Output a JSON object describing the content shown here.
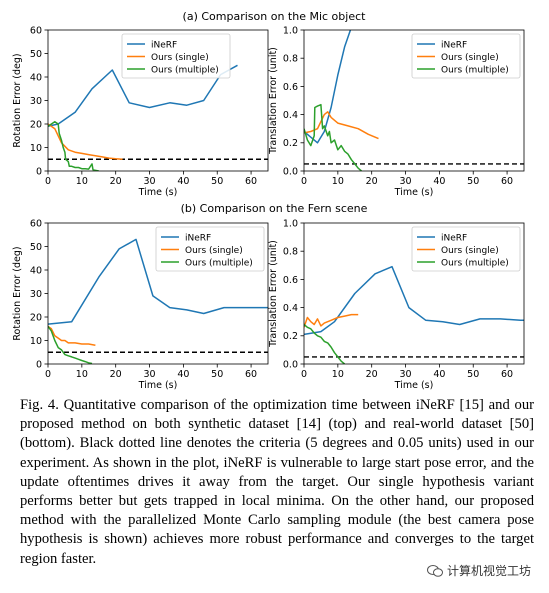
{
  "sections": [
    {
      "title": "(a) Comparison on the Mic object"
    },
    {
      "title": "(b) Comparison on the Fern scene"
    }
  ],
  "colors": {
    "inerf": "#1f77b4",
    "single": "#ff7f0e",
    "multiple": "#2ca02c",
    "criteria": "#000000"
  },
  "chart_data": [
    {
      "id": "mic-rotation",
      "type": "line",
      "xlabel": "Time (s)",
      "ylabel": "Rotation Error (deg)",
      "xlim": [
        0,
        65
      ],
      "ylim": [
        0,
        60
      ],
      "xticks": [
        0,
        10,
        20,
        30,
        40,
        50,
        60
      ],
      "yticks": [
        0,
        10,
        20,
        30,
        40,
        50,
        60
      ],
      "criteria": 5,
      "legend": [
        "iNeRF",
        "Ours (single)",
        "Ours (multiple)"
      ],
      "legend_position": "top-center",
      "series": [
        {
          "name": "iNeRF",
          "color": "#1f77b4",
          "x": [
            0,
            3,
            8,
            13,
            19,
            24,
            30,
            36,
            41,
            46,
            51,
            56
          ],
          "y": [
            19,
            20,
            25,
            35,
            43,
            29,
            27,
            29,
            28,
            30,
            41,
            45
          ]
        },
        {
          "name": "Ours (single)",
          "color": "#ff7f0e",
          "x": [
            0,
            2,
            4,
            6,
            8,
            10,
            12,
            14,
            16,
            18,
            20,
            22
          ],
          "y": [
            20,
            18,
            12,
            9,
            8,
            7.5,
            7,
            6.5,
            6,
            5.5,
            5.2,
            5
          ]
        },
        {
          "name": "Ours (multiple)",
          "color": "#2ca02c",
          "x": [
            0,
            1,
            2,
            3,
            3.3,
            4,
            4.5,
            5,
            5.2,
            6,
            6.3,
            7,
            8,
            9,
            10,
            11,
            12,
            13,
            13.3,
            14,
            15
          ],
          "y": [
            19,
            20,
            21,
            20,
            16,
            13,
            10,
            8,
            5,
            4,
            2,
            2,
            1.5,
            1.5,
            1,
            1,
            0.8,
            3,
            0.5,
            0.3,
            0
          ]
        }
      ]
    },
    {
      "id": "mic-translation",
      "type": "line",
      "xlabel": "Time (s)",
      "ylabel": "Translation Error (unit)",
      "xlim": [
        0,
        65
      ],
      "ylim": [
        0,
        1.0
      ],
      "xticks": [
        0,
        10,
        20,
        30,
        40,
        50,
        60
      ],
      "yticks": [
        0.0,
        0.2,
        0.4,
        0.6,
        0.8,
        1.0
      ],
      "criteria": 0.05,
      "legend": [
        "iNeRF",
        "Ours (single)",
        "Ours (multiple)"
      ],
      "legend_position": "top-right",
      "series": [
        {
          "name": "iNeRF",
          "color": "#1f77b4",
          "x": [
            0,
            2,
            4,
            6,
            8,
            10,
            12,
            14
          ],
          "y": [
            0.28,
            0.24,
            0.2,
            0.28,
            0.45,
            0.68,
            0.88,
            1.02
          ]
        },
        {
          "name": "Ours (single)",
          "color": "#ff7f0e",
          "x": [
            0,
            2,
            4,
            6,
            7,
            8,
            10,
            13,
            16,
            19,
            22
          ],
          "y": [
            0.27,
            0.28,
            0.3,
            0.4,
            0.42,
            0.38,
            0.34,
            0.32,
            0.3,
            0.26,
            0.23
          ]
        },
        {
          "name": "Ours (multiple)",
          "color": "#2ca02c",
          "x": [
            0,
            1,
            2,
            3,
            3.2,
            4,
            5,
            5.5,
            6,
            7,
            7.5,
            8,
            9,
            10,
            11,
            12,
            13,
            14,
            15,
            16,
            17
          ],
          "y": [
            0.3,
            0.22,
            0.18,
            0.25,
            0.45,
            0.46,
            0.47,
            0.3,
            0.32,
            0.25,
            0.28,
            0.2,
            0.22,
            0.15,
            0.18,
            0.14,
            0.12,
            0.08,
            0.05,
            0.02,
            0.0
          ]
        }
      ]
    },
    {
      "id": "fern-rotation",
      "type": "line",
      "xlabel": "Time (s)",
      "ylabel": "Rotation Error (deg)",
      "xlim": [
        0,
        65
      ],
      "ylim": [
        0,
        60
      ],
      "xticks": [
        0,
        10,
        20,
        30,
        40,
        50,
        60
      ],
      "yticks": [
        0,
        10,
        20,
        30,
        40,
        50,
        60
      ],
      "criteria": 5,
      "legend": [
        "iNeRF",
        "Ours (single)",
        "Ours (multiple)"
      ],
      "legend_position": "top-right",
      "series": [
        {
          "name": "iNeRF",
          "color": "#1f77b4",
          "x": [
            0,
            7,
            15,
            21,
            26,
            31,
            36,
            41,
            46,
            52,
            58,
            64,
            65
          ],
          "y": [
            17,
            18,
            37,
            49,
            53,
            29,
            24,
            23,
            21.5,
            24,
            24,
            24,
            24
          ]
        },
        {
          "name": "Ours (single)",
          "color": "#ff7f0e",
          "x": [
            0,
            1,
            2,
            3,
            4,
            5,
            6,
            7,
            8,
            10,
            12,
            14
          ],
          "y": [
            16,
            15,
            12,
            11,
            10,
            10,
            9,
            9,
            9,
            8.5,
            8.5,
            8
          ]
        },
        {
          "name": "Ours (multiple)",
          "color": "#2ca02c",
          "x": [
            0,
            1,
            2,
            3,
            4,
            5,
            6,
            7,
            8,
            9,
            10,
            11,
            12,
            13
          ],
          "y": [
            16,
            14,
            10,
            7,
            6,
            4,
            3.5,
            3,
            2.5,
            2,
            1.5,
            1,
            0.5,
            0.2
          ]
        }
      ]
    },
    {
      "id": "fern-translation",
      "type": "line",
      "xlabel": "Time (s)",
      "ylabel": "Translation Error (unit)",
      "xlim": [
        0,
        65
      ],
      "ylim": [
        0,
        1.0
      ],
      "xticks": [
        0,
        10,
        20,
        30,
        40,
        50,
        60
      ],
      "yticks": [
        0.0,
        0.2,
        0.4,
        0.6,
        0.8,
        1.0
      ],
      "criteria": 0.05,
      "legend": [
        "iNeRF",
        "Ours (single)",
        "Ours (multiple)"
      ],
      "legend_position": "top-right",
      "series": [
        {
          "name": "iNeRF",
          "color": "#1f77b4",
          "x": [
            0,
            5,
            9,
            15,
            21,
            26,
            31,
            36,
            41,
            46,
            52,
            58,
            64,
            65
          ],
          "y": [
            0.21,
            0.23,
            0.3,
            0.5,
            0.64,
            0.69,
            0.4,
            0.31,
            0.3,
            0.28,
            0.32,
            0.32,
            0.31,
            0.31
          ]
        },
        {
          "name": "Ours (single)",
          "color": "#ff7f0e",
          "x": [
            0,
            1,
            2,
            3,
            4,
            5,
            6,
            7,
            8,
            10,
            12,
            14,
            16
          ],
          "y": [
            0.26,
            0.33,
            0.3,
            0.28,
            0.32,
            0.27,
            0.29,
            0.3,
            0.31,
            0.33,
            0.34,
            0.35,
            0.35
          ]
        },
        {
          "name": "Ours (multiple)",
          "color": "#2ca02c",
          "x": [
            0,
            1,
            2,
            3,
            4,
            5,
            6,
            7,
            8,
            9,
            10,
            11,
            12
          ],
          "y": [
            0.28,
            0.26,
            0.25,
            0.22,
            0.2,
            0.19,
            0.16,
            0.15,
            0.12,
            0.08,
            0.05,
            0.02,
            0.0
          ]
        }
      ]
    }
  ],
  "caption": "Fig. 4.   Quantitative comparison of the optimization time between iNeRF [15] and our proposed method on both synthetic dataset [14] (top) and real-world dataset [50] (bottom). Black dotted line denotes the criteria (5 degrees and 0.05 units) used in our experiment. As shown in the plot, iNeRF is vulnerable to large start pose error, and the update oftentimes drives it away from the target. Our single hypothesis variant performs better but gets trapped in local minima. On the other hand, our proposed method with the parallelized Monte Carlo sampling module (the best camera pose hypothesis is shown) achieves more robust performance and converges to the target region faster.",
  "watermark": "计算机视觉工坊"
}
